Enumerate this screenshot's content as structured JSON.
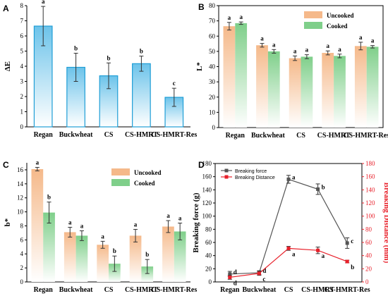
{
  "colors": {
    "blue_edge": "#1f9ed6",
    "blue_fill": "#6cc3ea",
    "orange_fill": "#f5b98a",
    "green_fill": "#7fcf8a",
    "force_line": "#555555",
    "distance_line": "#e8202a"
  },
  "chart_data": [
    {
      "panel": "A",
      "type": "bar",
      "ylabel": "ΔE",
      "categories": [
        "Regan",
        "Buckwheat",
        "CS",
        "CS-HMRT",
        "CS-HMRT-Res"
      ],
      "ylim": [
        0,
        8
      ],
      "yticks": [
        "0",
        "1",
        "2",
        "3",
        "4",
        "5",
        "6",
        "7",
        "8"
      ],
      "series": [
        {
          "values": [
            6.65,
            3.93,
            3.37,
            4.17,
            1.95
          ],
          "errors": [
            1.3,
            0.93,
            0.85,
            0.5,
            0.6
          ],
          "sig": [
            "a",
            "b",
            "b",
            "b",
            "c"
          ]
        }
      ]
    },
    {
      "panel": "B",
      "type": "bar",
      "ylabel": "L*",
      "categories": [
        "Regan",
        "Buckwheat",
        "CS",
        "CS-HMRT",
        "CS-HMRT-Res"
      ],
      "ylim": [
        0,
        80
      ],
      "yticks": [
        "0",
        "10",
        "20",
        "30",
        "40",
        "50",
        "60",
        "70",
        "80"
      ],
      "legend": "top-right",
      "series": [
        {
          "name": "Uncooked",
          "values": [
            66.5,
            54.0,
            45.5,
            49.0,
            53.5
          ],
          "errors": [
            2.5,
            1.2,
            1.5,
            1.3,
            2.5
          ],
          "sig": [
            "a",
            "a",
            "a",
            "a",
            "a"
          ]
        },
        {
          "name": "Cooked",
          "values": [
            68.5,
            50.0,
            46.5,
            47.0,
            53.0
          ],
          "errors": [
            0.8,
            1.2,
            1.3,
            1.2,
            0.8
          ],
          "sig": [
            "a",
            "a",
            "a",
            "a",
            "a"
          ]
        }
      ]
    },
    {
      "panel": "C",
      "type": "bar",
      "ylabel": "b*",
      "categories": [
        "Regan",
        "Buckwheat",
        "CS",
        "CS-HMRT",
        "CS-HMRT-Res"
      ],
      "ylim": [
        0,
        17
      ],
      "yticks": [
        "0",
        "2",
        "4",
        "6",
        "8",
        "10",
        "12",
        "14",
        "16"
      ],
      "legend": "top-right",
      "series": [
        {
          "name": "Uncooked",
          "values": [
            16.1,
            7.1,
            5.3,
            6.6,
            7.9
          ],
          "errors": [
            0.25,
            0.7,
            0.5,
            0.9,
            0.85
          ],
          "sig": [
            "a",
            "a",
            "a",
            "a",
            "a"
          ]
        },
        {
          "name": "Cooked",
          "values": [
            9.9,
            6.6,
            2.6,
            2.2,
            7.2
          ],
          "errors": [
            1.5,
            0.7,
            1.1,
            1.0,
            1.2
          ],
          "sig": [
            "b",
            "a",
            "b",
            "b",
            "a"
          ]
        }
      ]
    },
    {
      "panel": "D",
      "type": "line",
      "ylabel": "Breaking force (g)",
      "y2label": "Breaking Distance (mm)",
      "categories": [
        "Regan",
        "Buckwheat",
        "CS",
        "CS-HMRT",
        "CS-HMRT-Res"
      ],
      "ylim": [
        0,
        180
      ],
      "y2lim": [
        0,
        180
      ],
      "yticks": [
        "0",
        "20",
        "40",
        "60",
        "80",
        "100",
        "120",
        "140",
        "160",
        "180"
      ],
      "y2ticks": [
        "0",
        "20",
        "40",
        "60",
        "80",
        "100",
        "120",
        "140",
        "160",
        "180"
      ],
      "legend": "top-left",
      "series": [
        {
          "name": "Breaking force",
          "values": [
            12,
            14,
            156,
            141,
            59
          ],
          "errors": [
            4,
            3,
            6,
            8,
            8
          ],
          "sig": [
            "d",
            "d",
            "a",
            "b",
            "c"
          ]
        },
        {
          "name": "Breaking Distance",
          "values": [
            7,
            13,
            51,
            48,
            31
          ],
          "errors": [
            3,
            3,
            3,
            5,
            2
          ],
          "sig": [
            "d",
            "c",
            "a",
            "a",
            "b"
          ]
        }
      ]
    }
  ]
}
